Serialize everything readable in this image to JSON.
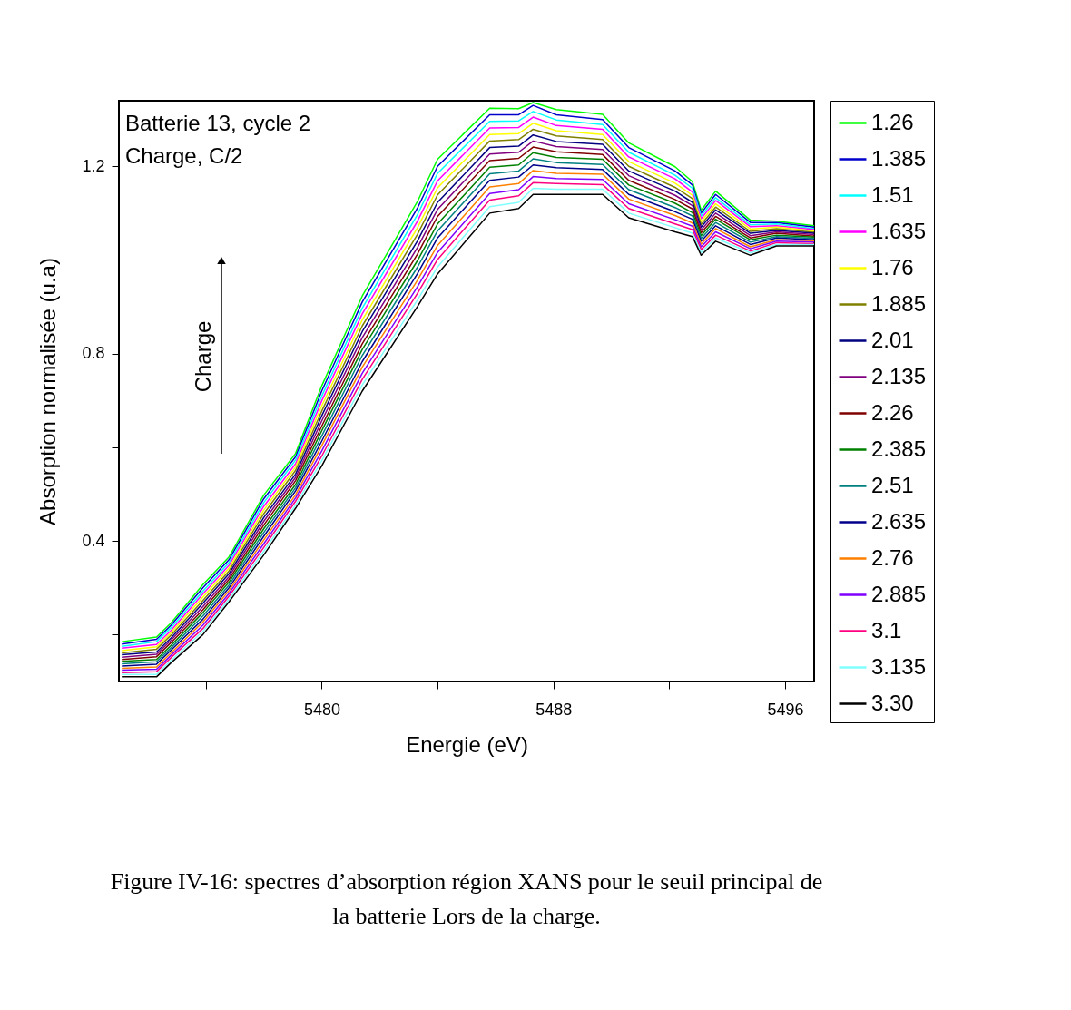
{
  "chart_data": {
    "type": "line",
    "xlabel": "Energie (eV)",
    "ylabel": "Absorption normalisée (u.a)",
    "annotations": [
      "Batterie 13, cycle 2",
      "Charge, C/2",
      "Charge",
      "Figure IV-16: spectres d’absorption région XANS pour le seuil principal de la batterie Lors de la charge."
    ],
    "xlim": [
      5473,
      5497
    ],
    "ylim": [
      0.1,
      1.34
    ],
    "xticks": [
      {
        "value": 5476,
        "label": null
      },
      5480,
      {
        "value": 5484,
        "label": null
      },
      5488,
      {
        "value": 5492,
        "label": null
      },
      5496
    ],
    "yticks": [
      {
        "value": 0.2,
        "label": null
      },
      0.4,
      {
        "value": 0.6,
        "label": null
      },
      0.8,
      {
        "value": 1.0,
        "label": null
      },
      1.2
    ],
    "grid": false,
    "legend": "right",
    "x": [
      5473.1,
      5474.3,
      5474.8,
      5475.9,
      5476.8,
      5478.0,
      5479.1,
      5480.0,
      5481.4,
      5483.3,
      5484.0,
      5485.8,
      5486.8,
      5487.3,
      5488.1,
      5489.7,
      5490.6,
      5492.2,
      5492.8,
      5493.1,
      5493.6,
      5494.8,
      5495.7,
      5497.0
    ],
    "series": [
      {
        "name": "1.26",
        "color": "#00ff00",
        "values": [
          0.185,
          0.195,
          0.225,
          0.307,
          0.366,
          0.498,
          0.587,
          0.731,
          0.923,
          1.124,
          1.215,
          1.324,
          1.323,
          1.336,
          1.321,
          1.311,
          1.25,
          1.199,
          1.167,
          1.106,
          1.147,
          1.085,
          1.083,
          1.073
        ]
      },
      {
        "name": "1.385",
        "color": "#0000cc",
        "values": [
          0.18,
          0.19,
          0.22,
          0.3,
          0.36,
          0.49,
          0.58,
          0.72,
          0.91,
          1.11,
          1.2,
          1.31,
          1.31,
          1.33,
          1.31,
          1.3,
          1.24,
          1.19,
          1.16,
          1.1,
          1.14,
          1.08,
          1.08,
          1.07
        ]
      },
      {
        "name": "1.51",
        "color": "#00ffff",
        "values": [
          0.175,
          0.185,
          0.215,
          0.293,
          0.354,
          0.482,
          0.573,
          0.709,
          0.897,
          1.096,
          1.185,
          1.296,
          1.297,
          1.317,
          1.299,
          1.289,
          1.23,
          1.181,
          1.153,
          1.094,
          1.133,
          1.075,
          1.077,
          1.067
        ]
      },
      {
        "name": "1.635",
        "color": "#ff00ff",
        "values": [
          0.171,
          0.179,
          0.209,
          0.287,
          0.348,
          0.474,
          0.565,
          0.699,
          0.885,
          1.082,
          1.169,
          1.282,
          1.283,
          1.305,
          1.287,
          1.279,
          1.22,
          1.173,
          1.145,
          1.088,
          1.127,
          1.071,
          1.073,
          1.065
        ]
      },
      {
        "name": "1.76",
        "color": "#ffff00",
        "values": [
          0.166,
          0.174,
          0.204,
          0.28,
          0.342,
          0.466,
          0.558,
          0.688,
          0.872,
          1.068,
          1.154,
          1.268,
          1.27,
          1.292,
          1.276,
          1.268,
          1.21,
          1.164,
          1.138,
          1.082,
          1.12,
          1.066,
          1.07,
          1.062
        ]
      },
      {
        "name": "1.885",
        "color": "#808000",
        "values": [
          0.161,
          0.169,
          0.199,
          0.273,
          0.336,
          0.458,
          0.551,
          0.677,
          0.859,
          1.054,
          1.139,
          1.254,
          1.257,
          1.279,
          1.265,
          1.257,
          1.2,
          1.155,
          1.131,
          1.076,
          1.113,
          1.061,
          1.067,
          1.059
        ]
      },
      {
        "name": "2.01",
        "color": "#000080",
        "values": [
          0.157,
          0.163,
          0.193,
          0.267,
          0.33,
          0.45,
          0.543,
          0.667,
          0.847,
          1.04,
          1.123,
          1.24,
          1.243,
          1.267,
          1.253,
          1.247,
          1.19,
          1.147,
          1.123,
          1.07,
          1.107,
          1.057,
          1.063,
          1.057
        ]
      },
      {
        "name": "2.135",
        "color": "#800080",
        "values": [
          0.152,
          0.158,
          0.188,
          0.26,
          0.324,
          0.442,
          0.536,
          0.656,
          0.834,
          1.026,
          1.108,
          1.226,
          1.23,
          1.254,
          1.242,
          1.236,
          1.18,
          1.138,
          1.116,
          1.064,
          1.1,
          1.052,
          1.06,
          1.054
        ]
      },
      {
        "name": "2.26",
        "color": "#800000",
        "values": [
          0.147,
          0.153,
          0.183,
          0.253,
          0.318,
          0.434,
          0.529,
          0.645,
          0.821,
          1.012,
          1.093,
          1.212,
          1.217,
          1.241,
          1.231,
          1.225,
          1.17,
          1.129,
          1.109,
          1.058,
          1.093,
          1.047,
          1.057,
          1.051
        ]
      },
      {
        "name": "2.385",
        "color": "#008000",
        "values": [
          0.143,
          0.147,
          0.177,
          0.247,
          0.312,
          0.426,
          0.521,
          0.635,
          0.809,
          0.998,
          1.077,
          1.198,
          1.203,
          1.229,
          1.219,
          1.215,
          1.16,
          1.121,
          1.101,
          1.052,
          1.087,
          1.043,
          1.053,
          1.049
        ]
      },
      {
        "name": "2.51",
        "color": "#008080",
        "values": [
          0.138,
          0.142,
          0.172,
          0.24,
          0.306,
          0.418,
          0.514,
          0.624,
          0.796,
          0.984,
          1.062,
          1.184,
          1.19,
          1.216,
          1.208,
          1.204,
          1.15,
          1.112,
          1.094,
          1.046,
          1.08,
          1.038,
          1.05,
          1.046
        ]
      },
      {
        "name": "2.635",
        "color": "#00008b",
        "values": [
          0.133,
          0.137,
          0.167,
          0.233,
          0.3,
          0.41,
          0.507,
          0.613,
          0.783,
          0.97,
          1.047,
          1.17,
          1.177,
          1.203,
          1.197,
          1.193,
          1.14,
          1.103,
          1.087,
          1.04,
          1.073,
          1.033,
          1.047,
          1.043
        ]
      },
      {
        "name": "2.76",
        "color": "#ff8000",
        "values": [
          0.128,
          0.131,
          0.161,
          0.227,
          0.294,
          0.402,
          0.499,
          0.603,
          0.771,
          0.956,
          1.031,
          1.156,
          1.163,
          1.191,
          1.185,
          1.183,
          1.13,
          1.095,
          1.079,
          1.034,
          1.067,
          1.028,
          1.043,
          1.041
        ]
      },
      {
        "name": "2.885",
        "color": "#8000ff",
        "values": [
          0.124,
          0.126,
          0.156,
          0.22,
          0.288,
          0.394,
          0.492,
          0.592,
          0.758,
          0.942,
          1.016,
          1.142,
          1.15,
          1.178,
          1.174,
          1.172,
          1.12,
          1.086,
          1.072,
          1.028,
          1.06,
          1.024,
          1.04,
          1.038
        ]
      },
      {
        "name": "3.1",
        "color": "#ff0080",
        "values": [
          0.119,
          0.121,
          0.151,
          0.213,
          0.282,
          0.386,
          0.485,
          0.581,
          0.745,
          0.928,
          1.001,
          1.128,
          1.137,
          1.165,
          1.163,
          1.161,
          1.11,
          1.077,
          1.065,
          1.022,
          1.053,
          1.019,
          1.037,
          1.035
        ]
      },
      {
        "name": "3.135",
        "color": "#80ffff",
        "values": [
          0.115,
          0.115,
          0.145,
          0.207,
          0.276,
          0.378,
          0.477,
          0.571,
          0.733,
          0.914,
          0.985,
          1.114,
          1.123,
          1.153,
          1.151,
          1.151,
          1.1,
          1.069,
          1.057,
          1.016,
          1.047,
          1.015,
          1.033,
          1.033
        ]
      },
      {
        "name": "3.30",
        "color": "#000000",
        "values": [
          0.11,
          0.11,
          0.14,
          0.2,
          0.27,
          0.37,
          0.47,
          0.56,
          0.72,
          0.9,
          0.97,
          1.1,
          1.11,
          1.14,
          1.14,
          1.14,
          1.09,
          1.06,
          1.05,
          1.01,
          1.04,
          1.01,
          1.03,
          1.03
        ]
      }
    ]
  }
}
